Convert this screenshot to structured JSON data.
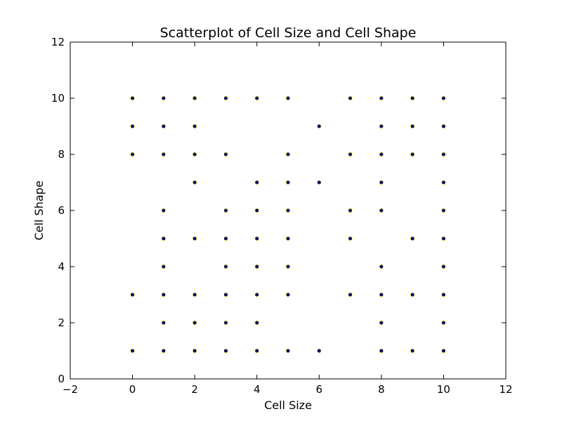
{
  "chart_data": {
    "type": "scatter",
    "title": "Scatterplot of Cell Size and Cell Shape",
    "xlabel": "Cell Size",
    "ylabel": "Cell Shape",
    "xlim": [
      -2,
      12
    ],
    "ylim": [
      0,
      12
    ],
    "xticks": [
      "−2",
      "0",
      "2",
      "4",
      "6",
      "8",
      "10",
      "12"
    ],
    "xtick_values": [
      -2,
      0,
      2,
      4,
      6,
      8,
      10,
      12
    ],
    "yticks": [
      "0",
      "2",
      "4",
      "6",
      "8",
      "10",
      "12"
    ],
    "ytick_values": [
      0,
      2,
      4,
      6,
      8,
      10,
      12
    ],
    "grid": false,
    "marker_fill": "#000080",
    "marker_edge": "#ffff00",
    "points": [
      [
        0,
        10
      ],
      [
        0,
        9
      ],
      [
        0,
        8
      ],
      [
        0,
        3
      ],
      [
        0,
        1
      ],
      [
        1,
        10
      ],
      [
        1,
        9
      ],
      [
        1,
        8
      ],
      [
        1,
        6
      ],
      [
        1,
        5
      ],
      [
        1,
        4
      ],
      [
        1,
        3
      ],
      [
        1,
        2
      ],
      [
        1,
        1
      ],
      [
        2,
        10
      ],
      [
        2,
        9
      ],
      [
        2,
        8
      ],
      [
        2,
        7
      ],
      [
        2,
        5
      ],
      [
        2,
        3
      ],
      [
        2,
        2
      ],
      [
        2,
        1
      ],
      [
        3,
        10
      ],
      [
        3,
        8
      ],
      [
        3,
        6
      ],
      [
        3,
        5
      ],
      [
        3,
        4
      ],
      [
        3,
        3
      ],
      [
        3,
        2
      ],
      [
        3,
        1
      ],
      [
        4,
        10
      ],
      [
        4,
        7
      ],
      [
        4,
        6
      ],
      [
        4,
        5
      ],
      [
        4,
        4
      ],
      [
        4,
        3
      ],
      [
        4,
        2
      ],
      [
        4,
        1
      ],
      [
        5,
        10
      ],
      [
        5,
        8
      ],
      [
        5,
        7
      ],
      [
        5,
        6
      ],
      [
        5,
        5
      ],
      [
        5,
        4
      ],
      [
        5,
        3
      ],
      [
        5,
        1
      ],
      [
        6,
        9
      ],
      [
        6,
        7
      ],
      [
        6,
        1
      ],
      [
        7,
        10
      ],
      [
        7,
        8
      ],
      [
        7,
        6
      ],
      [
        7,
        5
      ],
      [
        7,
        3
      ],
      [
        8,
        10
      ],
      [
        8,
        9
      ],
      [
        8,
        8
      ],
      [
        8,
        7
      ],
      [
        8,
        6
      ],
      [
        8,
        4
      ],
      [
        8,
        3
      ],
      [
        8,
        2
      ],
      [
        8,
        1
      ],
      [
        9,
        10
      ],
      [
        9,
        9
      ],
      [
        9,
        8
      ],
      [
        9,
        5
      ],
      [
        9,
        3
      ],
      [
        9,
        1
      ],
      [
        10,
        10
      ],
      [
        10,
        9
      ],
      [
        10,
        8
      ],
      [
        10,
        7
      ],
      [
        10,
        6
      ],
      [
        10,
        5
      ],
      [
        10,
        4
      ],
      [
        10,
        3
      ],
      [
        10,
        2
      ],
      [
        10,
        1
      ]
    ]
  }
}
